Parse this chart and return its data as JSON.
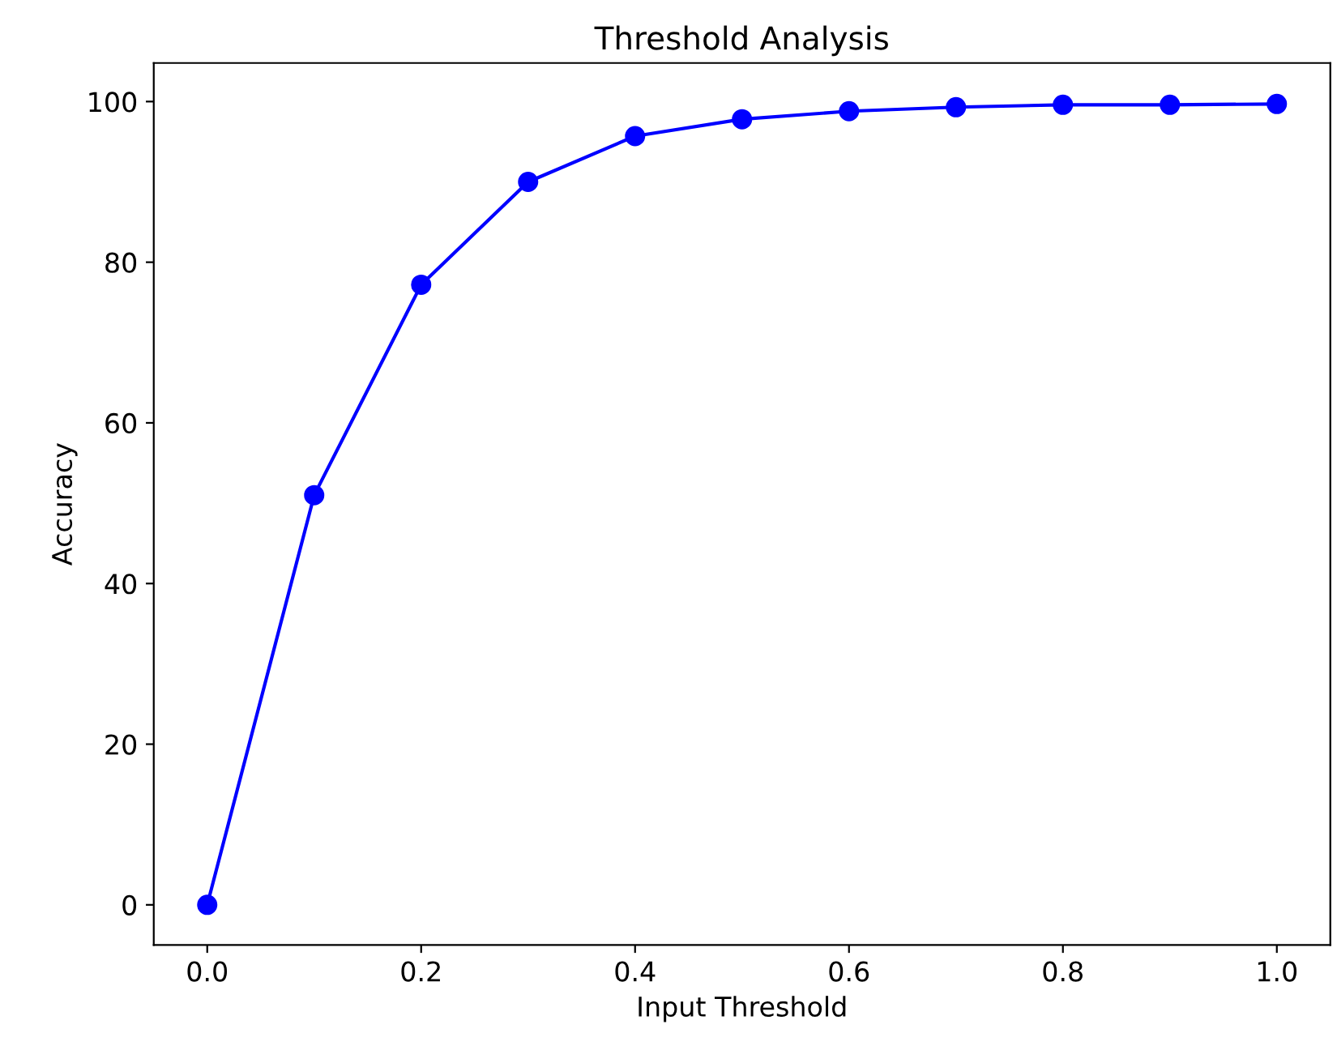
{
  "chart_data": {
    "type": "line",
    "title": "Threshold Analysis",
    "xlabel": "Input Threshold",
    "ylabel": "Accuracy",
    "x": [
      0.0,
      0.1,
      0.2,
      0.3,
      0.4,
      0.5,
      0.6,
      0.7,
      0.8,
      0.9,
      1.0
    ],
    "series": [
      {
        "color": "#0000ff",
        "values": [
          0,
          51,
          77.2,
          90.0,
          95.7,
          97.8,
          98.8,
          99.3,
          99.6,
          99.6,
          99.7
        ]
      }
    ],
    "marker": "circle",
    "line_style": "solid",
    "grid": false,
    "legend": false,
    "xlim": [
      -0.05,
      1.05
    ],
    "ylim": [
      -5,
      104.8
    ],
    "xticks": [
      {
        "value": 0,
        "label": "0.0"
      },
      0.2,
      0.4,
      0.6,
      0.8,
      {
        "value": 1,
        "label": "1.0"
      }
    ],
    "yticks": [
      0,
      20,
      40,
      60,
      80,
      100
    ]
  }
}
